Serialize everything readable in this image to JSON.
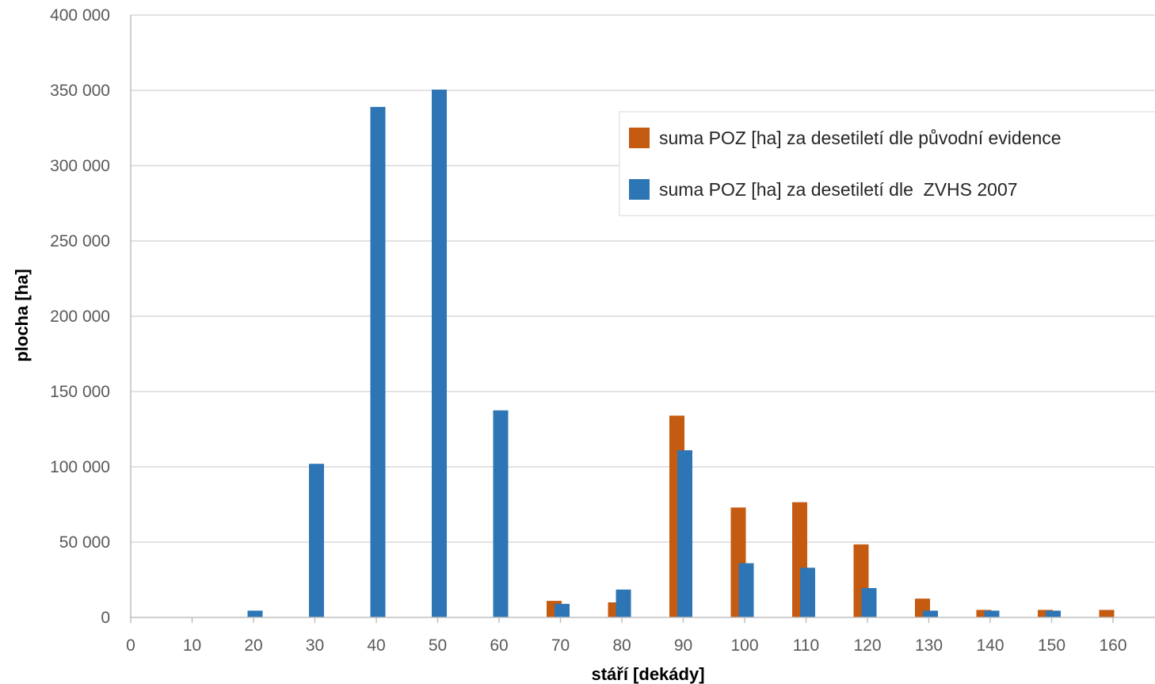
{
  "chart_data": {
    "type": "bar",
    "title": "",
    "xlabel": "stáří [dekády]",
    "ylabel": "plocha [ha]",
    "ylim": [
      0,
      400000
    ],
    "yticks": [
      0,
      50000,
      100000,
      150000,
      200000,
      250000,
      300000,
      350000,
      400000
    ],
    "ytick_labels": [
      "0",
      "50 000",
      "100 000",
      "150 000",
      "200 000",
      "250 000",
      "300 000",
      "350 000",
      "400 000"
    ],
    "categories": [
      "0",
      "10",
      "20",
      "30",
      "40",
      "50",
      "60",
      "70",
      "80",
      "90",
      "100",
      "110",
      "120",
      "130",
      "140",
      "150",
      "160"
    ],
    "grid": true,
    "legend_position": "top-right",
    "series": [
      {
        "name": "suma POZ [ha] za desetiletí dle původní evidence",
        "color": "#c55a11",
        "values": [
          0,
          0,
          0,
          0,
          0,
          0,
          0,
          11000,
          10000,
          134000,
          73000,
          76500,
          48500,
          12500,
          5000,
          5000,
          5000
        ]
      },
      {
        "name": "suma POZ [ha] za desetiletí dle  ZVHS 2007",
        "color": "#2e75b6",
        "values": [
          0,
          0,
          4500,
          102000,
          339000,
          350500,
          137500,
          9000,
          18500,
          111000,
          36000,
          33000,
          19500,
          4500,
          4500,
          4500,
          0
        ]
      }
    ]
  }
}
